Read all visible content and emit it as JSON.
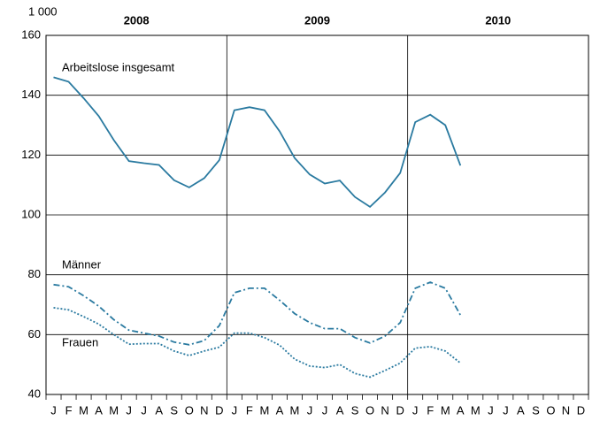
{
  "chart_data": {
    "type": "line",
    "unit_label": "1 000",
    "years": [
      "2008",
      "2009",
      "2010"
    ],
    "categories": [
      "J",
      "F",
      "M",
      "A",
      "M",
      "J",
      "J",
      "A",
      "S",
      "O",
      "N",
      "D",
      "J",
      "F",
      "M",
      "A",
      "M",
      "J",
      "J",
      "A",
      "S",
      "O",
      "N",
      "D",
      "J",
      "F",
      "M",
      "A",
      "M",
      "J",
      "J",
      "A",
      "S",
      "O",
      "N",
      "D"
    ],
    "series": [
      {
        "name": "Arbeitslose insgesamt",
        "color": "#2a7aa0",
        "style": "solid",
        "values": [
          146,
          144.5,
          139,
          133,
          125,
          118,
          117.3,
          116.7,
          111.6,
          109.2,
          112.3,
          118.3,
          135,
          136,
          135,
          128,
          119,
          113.5,
          110.5,
          111.5,
          106,
          102.7,
          107.5,
          114,
          131,
          133.5,
          130,
          116.5,
          null,
          null,
          null,
          null,
          null,
          null,
          null,
          null
        ]
      },
      {
        "name": "Männer",
        "color": "#2a7aa0",
        "style": "dashdot",
        "values": [
          76.7,
          76,
          73,
          69.5,
          65,
          61.5,
          60.5,
          59.5,
          57.5,
          56.6,
          58,
          63,
          74,
          75.5,
          75.5,
          71.5,
          67,
          64,
          62,
          62,
          59,
          57.2,
          59.5,
          64,
          75.5,
          77.5,
          75.5,
          66.5,
          null,
          null,
          null,
          null,
          null,
          null,
          null,
          null
        ]
      },
      {
        "name": "Frauen",
        "color": "#2a7aa0",
        "style": "dotted",
        "values": [
          69,
          68.3,
          66,
          63.5,
          60,
          56.8,
          57,
          57,
          54.5,
          53,
          54.5,
          55.8,
          60.5,
          60.5,
          59,
          56.5,
          51.8,
          49.5,
          49,
          50,
          47,
          45.8,
          48,
          50.5,
          55.5,
          56,
          54.5,
          50.5,
          null,
          null,
          null,
          null,
          null,
          null,
          null,
          null
        ]
      }
    ],
    "ylim": [
      40,
      160
    ],
    "yticks": [
      40,
      60,
      80,
      100,
      120,
      140,
      160
    ],
    "grid": true
  }
}
